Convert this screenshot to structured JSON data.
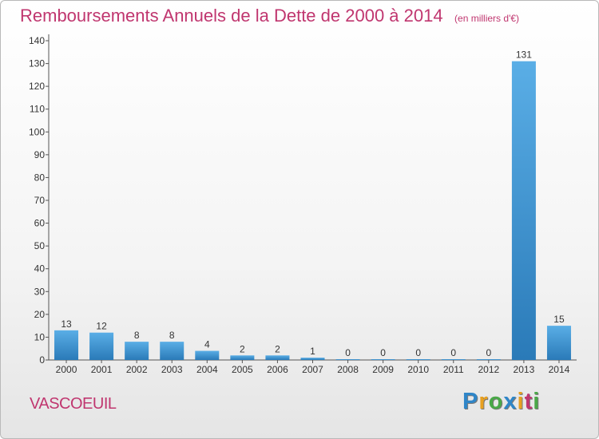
{
  "chart_data": {
    "type": "bar",
    "title": "Remboursements Annuels de la Dette de 2000 à 2014",
    "subtitle": "(en milliers d'€)",
    "categories": [
      "2000",
      "2001",
      "2002",
      "2003",
      "2004",
      "2005",
      "2006",
      "2007",
      "2008",
      "2009",
      "2010",
      "2011",
      "2012",
      "2013",
      "2014"
    ],
    "values": [
      13,
      12,
      8,
      8,
      4,
      2,
      2,
      1,
      0,
      0,
      0,
      0,
      0,
      131,
      15
    ],
    "ylim": [
      0,
      140
    ],
    "yticks": [
      0,
      10,
      20,
      30,
      40,
      50,
      60,
      70,
      80,
      90,
      100,
      110,
      120,
      130,
      140
    ],
    "grid": false,
    "legend": "none",
    "bar_color_top": "#5aaee6",
    "bar_color_bottom": "#2a7ab8"
  },
  "footer": {
    "commune": "VASCOEUIL",
    "logo_letters": [
      {
        "char": "P",
        "color": "#2f86c8"
      },
      {
        "char": "r",
        "color": "#e8a020"
      },
      {
        "char": "o",
        "color": "#4aa848"
      },
      {
        "char": "x",
        "color": "#2f86c8"
      },
      {
        "char": "i",
        "color": "#e8a020"
      },
      {
        "char": "t",
        "color": "#c0366f"
      },
      {
        "char": "i",
        "color": "#4aa848"
      }
    ]
  }
}
